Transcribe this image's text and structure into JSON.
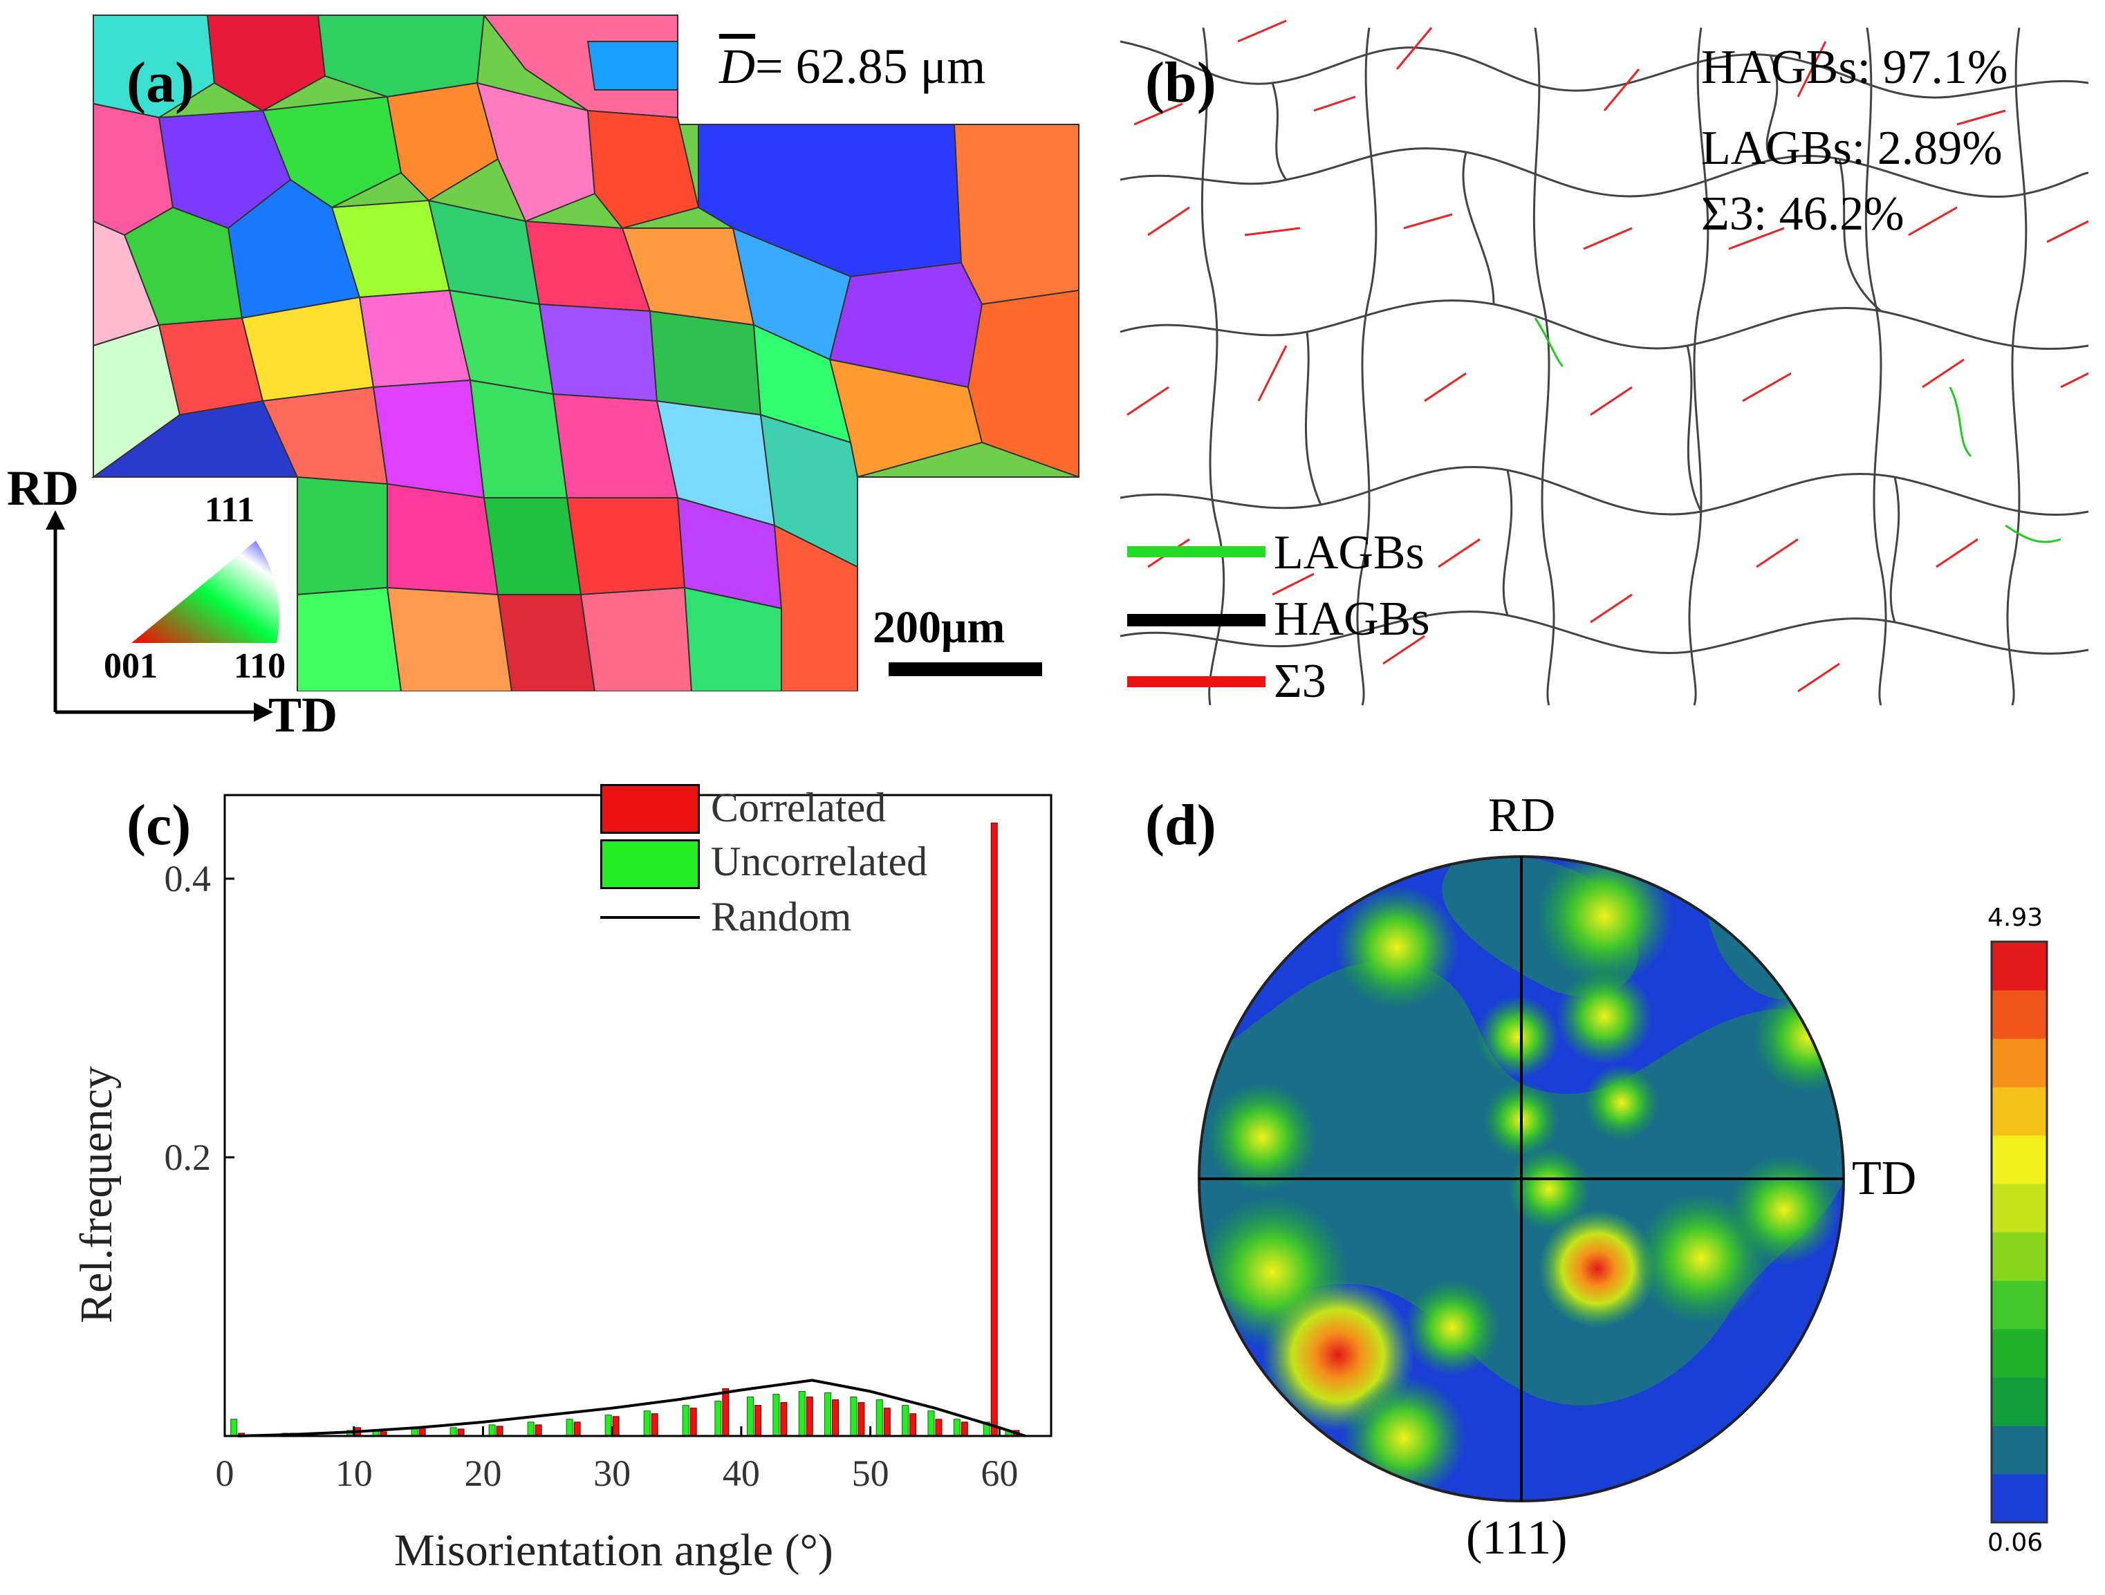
{
  "panel_a": {
    "label": "(a)",
    "mean_grain_size": "= 62.85 μm",
    "mean_symbol": "D",
    "scale_bar": "200μm",
    "ipf_top": "111",
    "ipf_left": "001",
    "ipf_right": "110",
    "axis_rd": "RD",
    "axis_td": "TD"
  },
  "panel_b": {
    "label": "(b)",
    "stats": [
      "HAGBs: 97.1%",
      "LAGBs: 2.89%",
      "Σ3: 46.2%"
    ],
    "legend": [
      {
        "label": "LAGBs",
        "color": "#22dd22"
      },
      {
        "label": "HAGBs",
        "color": "#000000"
      },
      {
        "label": "Σ3",
        "color": "#ee1111"
      }
    ]
  },
  "panel_c": {
    "label": "(c)",
    "legend": [
      {
        "label": "Correlated",
        "color": "#ee1111"
      },
      {
        "label": "Uncorrelated",
        "color": "#22ee22"
      },
      {
        "label": "Random",
        "color": "#000000"
      }
    ]
  },
  "panel_d": {
    "label": "(d)",
    "top_label": "RD",
    "right_label": "TD",
    "bottom_label": "(111)",
    "colorbar_max": "4.93",
    "colorbar_min": "0.06",
    "colorbar_colors": [
      "#1a3fd6",
      "#1a6e8a",
      "#129e3a",
      "#1fb22a",
      "#45c82a",
      "#88d51e",
      "#c5e41a",
      "#f0f21a",
      "#f5c21a",
      "#f5901a",
      "#f0561a",
      "#e21a1a"
    ]
  },
  "chart_data": {
    "type": "bar",
    "title": "",
    "xlabel": "Misorientation angle (°)",
    "ylabel": "Rel.frequency",
    "xlim": [
      0,
      64
    ],
    "ylim": [
      0,
      0.46
    ],
    "xticks": [
      "0",
      "10",
      "20",
      "30",
      "40",
      "50",
      "60"
    ],
    "yticks": [
      "0.2",
      "0.4"
    ],
    "x": [
      1,
      5,
      10,
      12,
      15,
      18,
      21,
      24,
      27,
      30,
      33,
      36,
      38.5,
      41,
      43,
      45,
      47,
      49,
      51,
      53,
      55,
      57,
      59.3,
      61
    ],
    "series": [
      {
        "name": "Correlated",
        "values": [
          0.002,
          0.002,
          0.006,
          0.003,
          0.006,
          0.005,
          0.007,
          0.008,
          0.01,
          0.014,
          0.016,
          0.02,
          0.034,
          0.022,
          0.024,
          0.028,
          0.026,
          0.024,
          0.02,
          0.016,
          0.012,
          0.01,
          0.44,
          0.004
        ]
      },
      {
        "name": "Uncorrelated",
        "values": [
          0.012,
          0.002,
          0.004,
          0.004,
          0.005,
          0.006,
          0.008,
          0.01,
          0.012,
          0.015,
          0.018,
          0.022,
          0.025,
          0.028,
          0.03,
          0.032,
          0.031,
          0.028,
          0.026,
          0.022,
          0.018,
          0.012,
          0.01,
          0.004
        ]
      },
      {
        "name": "Random",
        "x": [
          1,
          5,
          10,
          15,
          20,
          25,
          30,
          35,
          40,
          45.5,
          50,
          55,
          60,
          62
        ],
        "values": [
          0.0,
          0.001,
          0.003,
          0.006,
          0.01,
          0.015,
          0.02,
          0.026,
          0.033,
          0.04,
          0.032,
          0.02,
          0.006,
          0.0
        ]
      }
    ]
  }
}
